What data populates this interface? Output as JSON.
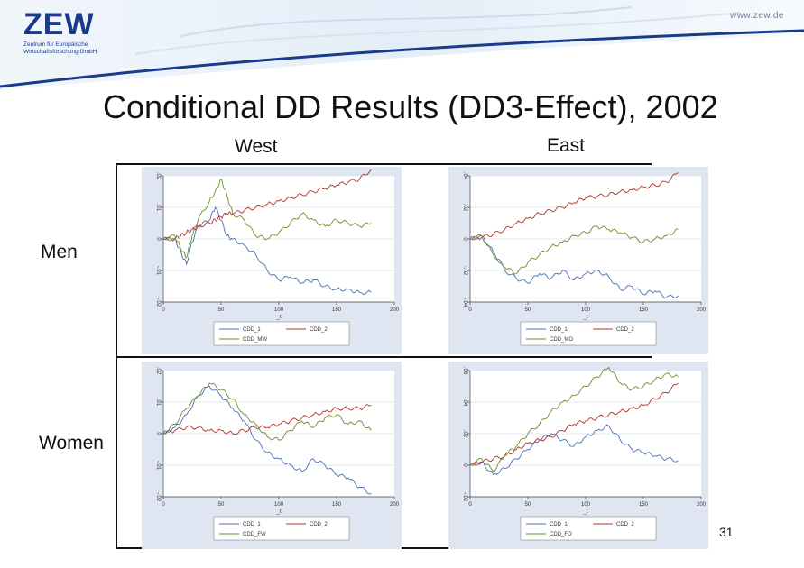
{
  "header": {
    "logo": "ZEW",
    "logo_sub_1": "Zentrum für Europäische",
    "logo_sub_2": "Wirtschaftsforschung GmbH",
    "site": "www.zew.de"
  },
  "title": "Conditional DD Results (DD3-Effect), 2002",
  "columns": [
    "West",
    "East"
  ],
  "rows": [
    "Men",
    "Women"
  ],
  "page_number": "31",
  "colors": {
    "blue": "#4a6fb5",
    "red": "#b5312a",
    "green": "#6b8e2b",
    "brand": "#1a3a8a"
  },
  "chart_data": [
    {
      "type": "line",
      "panel": "West / Men",
      "xlabel": "_t",
      "xlim": [
        0,
        200
      ],
      "xticks": [
        0,
        50,
        100,
        150,
        200
      ],
      "ylim": [
        -0.02,
        0.02
      ],
      "yticks": [
        -0.02,
        -0.01,
        0,
        0.01,
        0.02
      ],
      "ytick_labels": [
        "-.02",
        "-.01",
        "0",
        ".01",
        ".02"
      ],
      "legend": [
        "CDD_1",
        "CDD_2",
        "CDD_MW"
      ],
      "x": [
        0,
        10,
        15,
        20,
        25,
        30,
        40,
        45,
        50,
        55,
        60,
        70,
        80,
        90,
        100,
        110,
        120,
        130,
        140,
        150,
        160,
        170,
        180
      ],
      "series": [
        {
          "name": "CDD_1",
          "color": "blue",
          "values": [
            0.0,
            0.0,
            -0.004,
            -0.008,
            -0.001,
            0.004,
            0.006,
            0.01,
            0.006,
            0.001,
            0.0,
            -0.002,
            -0.005,
            -0.01,
            -0.013,
            -0.012,
            -0.014,
            -0.013,
            -0.015,
            -0.016,
            -0.016,
            -0.017,
            -0.017
          ]
        },
        {
          "name": "CDD_2",
          "color": "red",
          "values": [
            0.0,
            0.0,
            0.001,
            0.002,
            0.003,
            0.004,
            0.005,
            0.006,
            0.007,
            0.008,
            0.008,
            0.009,
            0.01,
            0.011,
            0.012,
            0.013,
            0.014,
            0.015,
            0.016,
            0.017,
            0.018,
            0.019,
            0.022
          ]
        },
        {
          "name": "CDD_MW",
          "color": "green",
          "values": [
            0.0,
            0.001,
            -0.003,
            -0.006,
            0.001,
            0.006,
            0.012,
            0.015,
            0.019,
            0.014,
            0.008,
            0.006,
            0.001,
            0.0,
            0.002,
            0.005,
            0.008,
            0.006,
            0.004,
            0.006,
            0.005,
            0.004,
            0.005
          ]
        }
      ]
    },
    {
      "type": "line",
      "panel": "East / Men",
      "xlabel": "_t",
      "xlim": [
        0,
        200
      ],
      "xticks": [
        0,
        50,
        100,
        150,
        200
      ],
      "ylim": [
        -0.04,
        0.04
      ],
      "yticks": [
        -0.04,
        -0.02,
        0,
        0.02,
        0.04
      ],
      "ytick_labels": [
        "-.04",
        "-.02",
        "0",
        ".02",
        ".04"
      ],
      "legend": [
        "CDD_1",
        "CDD_2",
        "CDD_MO"
      ],
      "x": [
        0,
        10,
        20,
        30,
        40,
        50,
        60,
        70,
        80,
        90,
        100,
        110,
        120,
        130,
        140,
        150,
        160,
        170,
        180
      ],
      "series": [
        {
          "name": "CDD_1",
          "color": "blue",
          "values": [
            0.0,
            0.002,
            -0.008,
            -0.02,
            -0.025,
            -0.028,
            -0.022,
            -0.025,
            -0.02,
            -0.026,
            -0.022,
            -0.02,
            -0.024,
            -0.032,
            -0.03,
            -0.035,
            -0.033,
            -0.037,
            -0.036
          ]
        },
        {
          "name": "CDD_2",
          "color": "red",
          "values": [
            0.0,
            0.001,
            0.003,
            0.006,
            0.01,
            0.013,
            0.016,
            0.018,
            0.02,
            0.023,
            0.026,
            0.027,
            0.028,
            0.03,
            0.031,
            0.033,
            0.034,
            0.036,
            0.042
          ]
        },
        {
          "name": "CDD_MO",
          "color": "green",
          "values": [
            0.0,
            0.002,
            -0.01,
            -0.018,
            -0.022,
            -0.015,
            -0.01,
            -0.005,
            -0.002,
            0.002,
            0.004,
            0.008,
            0.006,
            0.004,
            0.001,
            -0.002,
            0.0,
            0.002,
            0.006
          ]
        }
      ]
    },
    {
      "type": "line",
      "panel": "West / Women",
      "xlabel": "_t",
      "xlim": [
        0,
        200
      ],
      "xticks": [
        0,
        50,
        100,
        150,
        200
      ],
      "ylim": [
        -0.02,
        0.02
      ],
      "yticks": [
        -0.02,
        -0.01,
        0,
        0.01,
        0.02
      ],
      "ytick_labels": [
        "-.02",
        "-.01",
        "0",
        ".01",
        ".02"
      ],
      "legend": [
        "CDD_1",
        "CDD_2",
        "CDD_FW"
      ],
      "x": [
        0,
        10,
        20,
        30,
        40,
        50,
        60,
        70,
        80,
        90,
        100,
        110,
        120,
        130,
        140,
        150,
        160,
        170,
        180
      ],
      "series": [
        {
          "name": "CDD_1",
          "color": "blue",
          "values": [
            0.0,
            0.002,
            0.006,
            0.012,
            0.015,
            0.012,
            0.008,
            0.004,
            -0.002,
            -0.006,
            -0.008,
            -0.01,
            -0.012,
            -0.008,
            -0.01,
            -0.013,
            -0.014,
            -0.017,
            -0.019
          ]
        },
        {
          "name": "CDD_2",
          "color": "red",
          "values": [
            0.0,
            0.001,
            0.002,
            0.002,
            0.001,
            0.001,
            0.0,
            0.001,
            0.002,
            0.002,
            0.003,
            0.004,
            0.005,
            0.006,
            0.007,
            0.008,
            0.008,
            0.008,
            0.009
          ]
        },
        {
          "name": "CDD_FW",
          "color": "green",
          "values": [
            0.0,
            0.003,
            0.008,
            0.012,
            0.016,
            0.014,
            0.011,
            0.006,
            0.003,
            -0.001,
            -0.002,
            0.001,
            0.004,
            0.002,
            0.005,
            0.006,
            0.003,
            0.004,
            0.001
          ]
        }
      ]
    },
    {
      "type": "line",
      "panel": "East / Women",
      "xlabel": "_t",
      "xlim": [
        0,
        200
      ],
      "xticks": [
        0,
        50,
        100,
        150,
        200
      ],
      "ylim": [
        -0.02,
        0.06
      ],
      "yticks": [
        -0.02,
        0,
        0.02,
        0.04,
        0.06
      ],
      "ytick_labels": [
        "-.02",
        "0",
        ".02",
        ".04",
        ".06"
      ],
      "legend": [
        "CDD_1",
        "CDD_2",
        "CDD_FO"
      ],
      "x": [
        0,
        10,
        20,
        30,
        40,
        50,
        60,
        70,
        80,
        90,
        100,
        110,
        120,
        130,
        140,
        150,
        160,
        170,
        180
      ],
      "series": [
        {
          "name": "CDD_1",
          "color": "blue",
          "values": [
            0.0,
            0.002,
            -0.006,
            -0.002,
            0.004,
            0.01,
            0.016,
            0.02,
            0.016,
            0.012,
            0.018,
            0.022,
            0.025,
            0.016,
            0.01,
            0.008,
            0.006,
            0.004,
            0.003
          ]
        },
        {
          "name": "CDD_2",
          "color": "red",
          "values": [
            0.0,
            0.002,
            0.004,
            0.006,
            0.01,
            0.014,
            0.016,
            0.018,
            0.022,
            0.026,
            0.028,
            0.03,
            0.032,
            0.034,
            0.036,
            0.038,
            0.042,
            0.046,
            0.052
          ]
        },
        {
          "name": "CDD_FO",
          "color": "green",
          "values": [
            0.0,
            0.004,
            -0.004,
            0.006,
            0.012,
            0.02,
            0.026,
            0.034,
            0.04,
            0.044,
            0.05,
            0.056,
            0.062,
            0.052,
            0.048,
            0.05,
            0.054,
            0.058,
            0.056
          ]
        }
      ]
    }
  ]
}
